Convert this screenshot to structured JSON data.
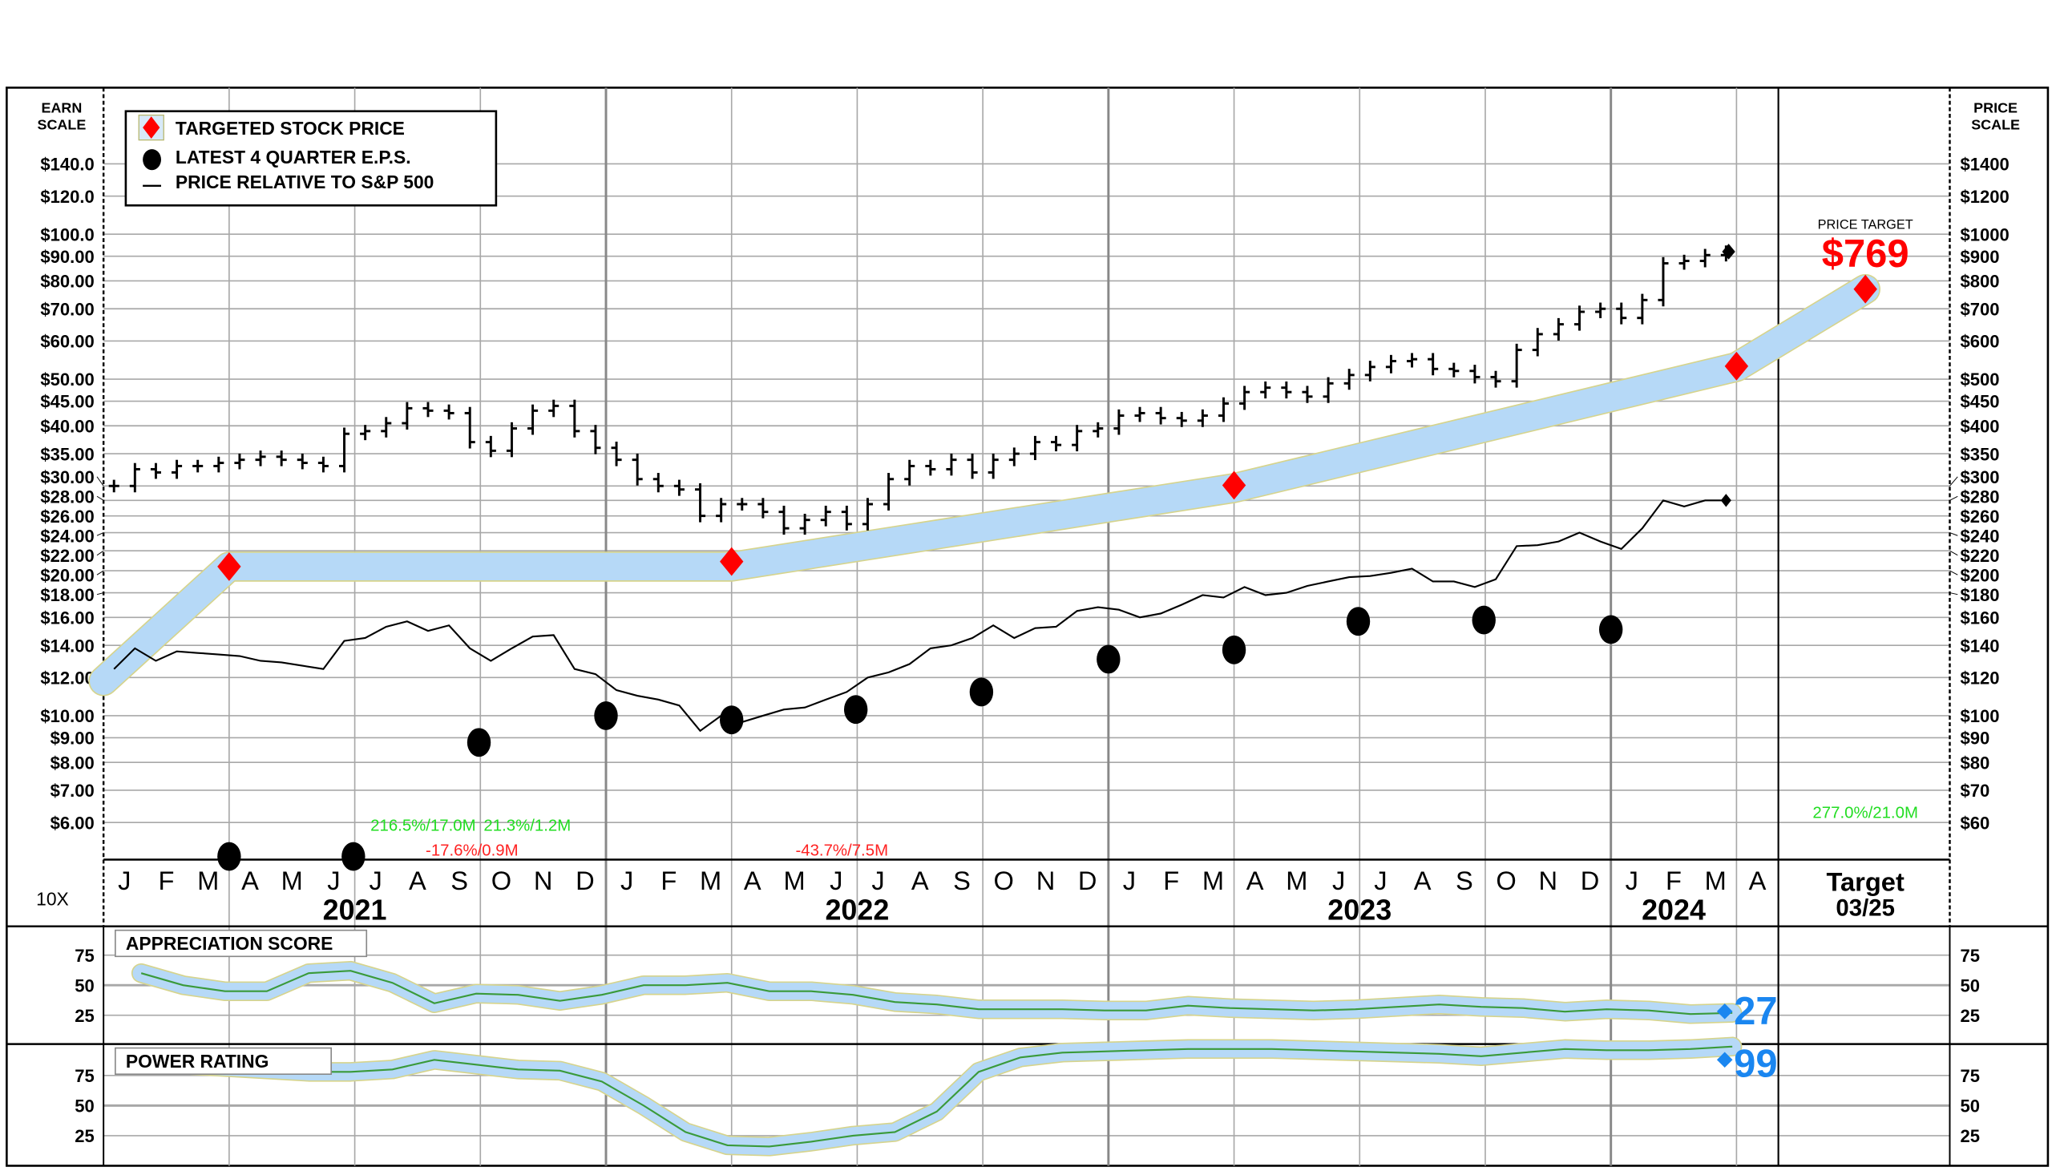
{
  "chart_data": {
    "type": "line",
    "legend": {
      "placement": "top-left",
      "items": [
        "TARGETED STOCK PRICE",
        "LATEST 4 QUARTER E.P.S.",
        "PRICE RELATIVE TO S&P 500"
      ]
    },
    "left_axis": {
      "title_line1": "EARN",
      "title_line2": "SCALE",
      "ticks": [
        140,
        120,
        100,
        90,
        80,
        70,
        60,
        50,
        45,
        40,
        35,
        30,
        28,
        26,
        24,
        22,
        20,
        18,
        16,
        14,
        12,
        10,
        9,
        8,
        7,
        6
      ],
      "tick_labels": [
        "$140.0",
        "$120.0",
        "$100.0",
        "$90.00",
        "$80.00",
        "$70.00",
        "$60.00",
        "$50.00",
        "$45.00",
        "$40.00",
        "$35.00",
        "$30.00",
        "$28.00",
        "$26.00",
        "$24.00",
        "$22.00",
        "$20.00",
        "$18.00",
        "$16.00",
        "$14.00",
        "$12.00",
        "$10.00",
        "$9.00",
        "$8.00",
        "$7.00",
        "$6.00"
      ],
      "scale": "log"
    },
    "right_axis": {
      "title_line1": "PRICE",
      "title_line2": "SCALE",
      "tick_labels": [
        "$1400",
        "$1200",
        "$1000",
        "$900",
        "$800",
        "$700",
        "$600",
        "$500",
        "$450",
        "$400",
        "$350",
        "$300",
        "$280",
        "$260",
        "$240",
        "$220",
        "$200",
        "$180",
        "$160",
        "$140",
        "$120",
        "$100",
        "$90",
        "$80",
        "$70",
        "$60"
      ],
      "multiplier_label": "10X"
    },
    "x_axis": {
      "months": [
        "J",
        "F",
        "M",
        "A",
        "M",
        "J",
        "J",
        "A",
        "S",
        "O",
        "N",
        "D"
      ],
      "years": [
        {
          "label": "2021",
          "center_month": "2021-07-01"
        },
        {
          "label": "2022",
          "center_month": "2022-07-01"
        },
        {
          "label": "2023",
          "center_month": "2023-07-01"
        },
        {
          "label": "2024",
          "center_month": "2024-03-01"
        }
      ],
      "start": "2021-01",
      "end": "2024-04",
      "target_label": "Target",
      "target_date": "03/25"
    },
    "price_target": {
      "label": "PRICE TARGET",
      "value_text": "$769",
      "value": 769
    },
    "price_bars": {
      "start": "2021-01",
      "interval": "half-month",
      "close": [
        300,
        325,
        320,
        330,
        330,
        335,
        340,
        345,
        340,
        335,
        330,
        385,
        390,
        405,
        435,
        430,
        425,
        370,
        355,
        395,
        430,
        440,
        390,
        360,
        340,
        310,
        300,
        295,
        260,
        275,
        275,
        265,
        245,
        255,
        265,
        250,
        275,
        310,
        330,
        325,
        340,
        320,
        340,
        350,
        370,
        365,
        390,
        395,
        420,
        425,
        415,
        410,
        420,
        445,
        470,
        480,
        470,
        460,
        490,
        510,
        530,
        545,
        550,
        525,
        520,
        505,
        495,
        575,
        620,
        650,
        690,
        700,
        670,
        730,
        870,
        880,
        905,
        920
      ]
    },
    "relative_to_sp500": {
      "start": "2021-01",
      "interval": "half-month",
      "units": "earn-scale",
      "values": [
        12.5,
        13.8,
        13.0,
        13.6,
        13.5,
        13.4,
        13.3,
        13.0,
        12.9,
        12.7,
        12.5,
        14.3,
        14.5,
        15.3,
        15.7,
        15.0,
        15.4,
        13.8,
        13.0,
        13.8,
        14.6,
        14.7,
        12.5,
        12.2,
        11.3,
        11.0,
        10.8,
        10.5,
        9.3,
        10.0,
        9.7,
        10.0,
        10.3,
        10.4,
        10.8,
        11.2,
        12.0,
        12.3,
        12.8,
        13.8,
        14.0,
        14.5,
        15.4,
        14.5,
        15.2,
        15.3,
        16.5,
        16.8,
        16.6,
        16.0,
        16.3,
        17.0,
        17.8,
        17.6,
        18.5,
        17.8,
        18.0,
        18.6,
        19.0,
        19.4,
        19.5,
        19.8,
        20.2,
        19.0,
        19.0,
        18.5,
        19.2,
        22.5,
        22.6,
        23.0,
        24.0,
        23.0,
        22.2,
        24.5,
        28.0,
        27.2,
        28.0,
        28.0
      ]
    },
    "eps": [
      {
        "date": "2021-03-31",
        "value": 5.1
      },
      {
        "date": "2021-06-30",
        "value": 5.1
      },
      {
        "date": "2021-09-30",
        "value": 8.8
      },
      {
        "date": "2021-12-31",
        "value": 10.0
      },
      {
        "date": "2022-03-31",
        "value": 9.8
      },
      {
        "date": "2022-06-30",
        "value": 10.3
      },
      {
        "date": "2022-09-30",
        "value": 11.2
      },
      {
        "date": "2022-12-31",
        "value": 13.1
      },
      {
        "date": "2023-03-31",
        "value": 13.7
      },
      {
        "date": "2023-06-30",
        "value": 15.7
      },
      {
        "date": "2023-09-30",
        "value": 15.8
      },
      {
        "date": "2023-12-31",
        "value": 15.1
      }
    ],
    "targeted_price": [
      {
        "date": "2021-03-31",
        "value": 204
      },
      {
        "date": "2022-03-31",
        "value": 209
      },
      {
        "date": "2023-03-31",
        "value": 301
      },
      {
        "date": "2024-03-31",
        "value": 532
      },
      {
        "date": "target",
        "value": 769
      }
    ],
    "target_band": [
      {
        "date": "2021-01-01",
        "value": 118
      },
      {
        "date": "2021-03-31",
        "value": 204
      },
      {
        "date": "2022-03-31",
        "value": 204
      },
      {
        "date": "2023-03-31",
        "value": 297
      },
      {
        "date": "2024-03-31",
        "value": 530
      },
      {
        "date": "target",
        "value": 769
      }
    ],
    "annotations": [
      {
        "text": "216.5%/17.0M",
        "color": "#22dd22",
        "date": "2021-08-20",
        "level": "upper"
      },
      {
        "text": "21.3%/1.2M",
        "color": "#22dd22",
        "date": "2021-10-08",
        "level": "upper"
      },
      {
        "text": "-17.6%/0.9M",
        "color": "#ff2222",
        "date": "2021-09-25",
        "level": "lower"
      },
      {
        "text": "-43.7%/7.5M",
        "color": "#ff2222",
        "date": "2022-06-20",
        "level": "lower"
      },
      {
        "text": "277.0%/21.0M",
        "color": "#22dd22",
        "date": "target",
        "level": "top"
      }
    ],
    "appreciation_score": {
      "title": "APPRECIATION SCORE",
      "start": "2021-01",
      "interval": "month",
      "ticks": [
        "75",
        "50",
        "25"
      ],
      "values": [
        60,
        50,
        45,
        45,
        60,
        62,
        52,
        35,
        43,
        42,
        37,
        42,
        50,
        50,
        52,
        45,
        45,
        42,
        36,
        34,
        30,
        30,
        30,
        29,
        29,
        33,
        31,
        30,
        29,
        30,
        32,
        34,
        32,
        31,
        28,
        30,
        29,
        26,
        27
      ],
      "current_text": "27"
    },
    "power_rating": {
      "title": "POWER RATING",
      "start": "2021-01",
      "interval": "month",
      "ticks": [
        "75",
        "50",
        "25"
      ],
      "values": [
        85,
        84,
        82,
        80,
        78,
        78,
        80,
        88,
        84,
        80,
        79,
        70,
        50,
        28,
        17,
        16,
        20,
        25,
        28,
        45,
        78,
        90,
        94,
        95,
        96,
        97,
        97,
        97,
        96,
        95,
        94,
        93,
        91,
        94,
        97,
        96,
        96,
        97,
        99
      ],
      "current_text": "99"
    },
    "colors": {
      "target": "#ff0000",
      "band": "#b6d9f7",
      "band_edge": "#d6d48c",
      "score_line": "#3a9a3a",
      "readout": "#1a86f0",
      "grid": "#a8a8a8"
    }
  }
}
